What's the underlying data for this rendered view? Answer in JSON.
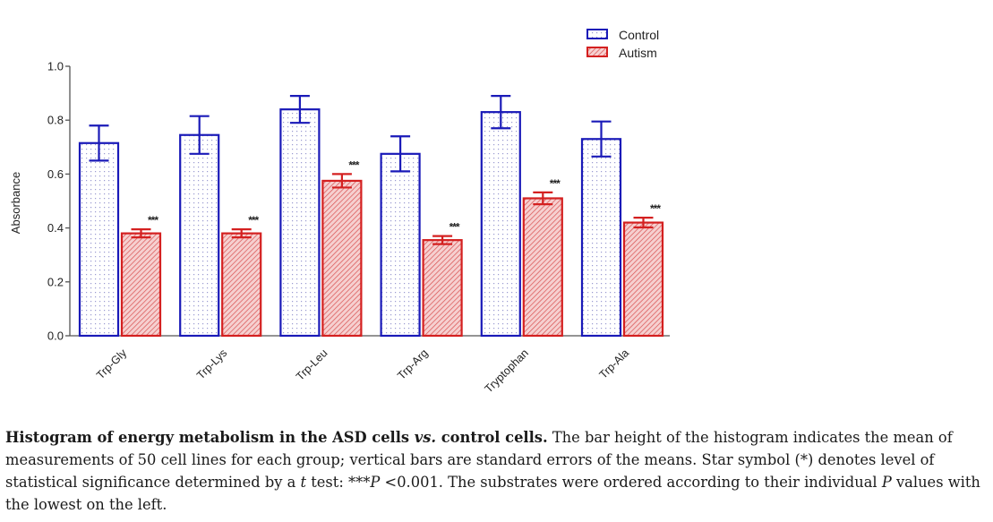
{
  "chart_data": {
    "type": "bar",
    "title": "",
    "xlabel": "",
    "ylabel": "Absorbance",
    "ylim": [
      0,
      1.0
    ],
    "yticks": [
      "0.0",
      "0.2",
      "0.4",
      "0.6",
      "0.8",
      "1.0"
    ],
    "ytick_values": [
      0,
      0.2,
      0.4,
      0.6,
      0.8,
      1.0
    ],
    "grid": false,
    "legend_position": "top-right",
    "categories": [
      "Trp-Gly",
      "Trp-Lys",
      "Trp-Leu",
      "Trp-Arg",
      "Tryptophan",
      "Trp-Ala"
    ],
    "series": [
      {
        "name": "Control",
        "color": "#1a1ab8",
        "pattern": "dots",
        "values": [
          0.715,
          0.745,
          0.84,
          0.675,
          0.83,
          0.73
        ],
        "error": [
          0.065,
          0.07,
          0.05,
          0.065,
          0.06,
          0.065
        ]
      },
      {
        "name": "Autism",
        "color": "#d42020",
        "pattern": "hatch",
        "values": [
          0.38,
          0.38,
          0.575,
          0.355,
          0.51,
          0.42
        ],
        "error": [
          0.015,
          0.015,
          0.025,
          0.015,
          0.022,
          0.018
        ]
      }
    ],
    "annotations": [
      "***",
      "***",
      "***",
      "***",
      "***",
      "***"
    ]
  },
  "caption": {
    "bold_lead": "Histogram of energy metabolism in the ASD cells ",
    "bold_italic": "vs.",
    "bold_tail": " control cells.",
    "text1": " The bar height of the histogram indicates the mean of measurements of 50 cell lines for each group; vertical bars are standard errors of the means. Star symbol (*) denotes level of statistical significance determined by a ",
    "italic_t": "t",
    "text2": " test: ***",
    "italic_p": "P",
    "text3": " <0.001. The substrates were ordered according to their individual ",
    "italic_p2": "P",
    "text4": " values with the lowest on the left."
  }
}
